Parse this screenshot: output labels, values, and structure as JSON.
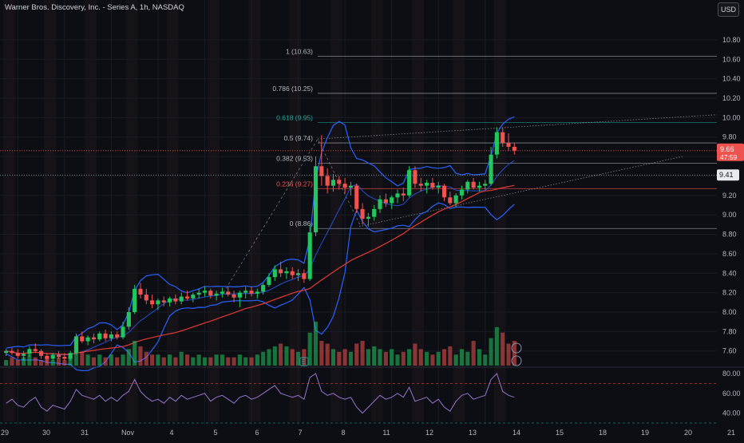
{
  "header": {
    "title": "Warner Bros. Discovery, Inc. - Series A, 1h, NASDAQ",
    "currency": "USD"
  },
  "colors": {
    "background": "#0c0e13",
    "up": "#26a69a",
    "up_bright": "#22c55e",
    "down": "#ef5350",
    "bollinger": "#2962ff",
    "ma_red": "#e53935",
    "rsi": "#9575cd",
    "fib": "#b2b5be",
    "fib_618": "#26a69a",
    "fib_236": "#ef5350"
  },
  "chart_data": [
    {
      "type": "candlestick",
      "title": "Warner Bros. Discovery, Inc. - Series A, 1h, NASDAQ",
      "ylim": [
        7.45,
        10.98
      ],
      "y_ticks": [
        "10.80",
        "10.60",
        "10.40",
        "10.20",
        "10.00",
        "9.80",
        "9.60",
        "9.40",
        "9.20",
        "9.00",
        "8.80",
        "8.60",
        "8.40",
        "8.20",
        "8.00",
        "7.80",
        "7.60"
      ],
      "x_labels": [
        "29",
        "30",
        "31",
        "Nov",
        "4",
        "5",
        "6",
        "7",
        "8",
        "11",
        "12",
        "13",
        "14",
        "15",
        "18",
        "19",
        "20",
        "21"
      ],
      "last_price": "9.66",
      "countdown": "47:59",
      "marker_price": "9.41",
      "fibonacci": [
        {
          "label": "1 (10.63)",
          "value": 10.63
        },
        {
          "label": "0.786 (10.25)",
          "value": 10.25
        },
        {
          "label": "0.618 (9.95)",
          "value": 9.95
        },
        {
          "label": "0.5 (9.74)",
          "value": 9.74
        },
        {
          "label": "0.382 (9.53)",
          "value": 9.53
        },
        {
          "label": "0.236 (9.27)",
          "value": 9.27
        },
        {
          "label": "0 (8.86)",
          "value": 8.86
        }
      ],
      "ohlc": [
        [
          7.58,
          7.62,
          7.55,
          7.6
        ],
        [
          7.6,
          7.63,
          7.56,
          7.58
        ],
        [
          7.58,
          7.62,
          7.52,
          7.55
        ],
        [
          7.55,
          7.6,
          7.5,
          7.57
        ],
        [
          7.57,
          7.65,
          7.54,
          7.62
        ],
        [
          7.62,
          7.68,
          7.58,
          7.6
        ],
        [
          7.6,
          7.62,
          7.52,
          7.55
        ],
        [
          7.55,
          7.58,
          7.48,
          7.52
        ],
        [
          7.52,
          7.58,
          7.5,
          7.56
        ],
        [
          7.56,
          7.6,
          7.52,
          7.54
        ],
        [
          7.54,
          7.58,
          7.5,
          7.52
        ],
        [
          7.52,
          7.6,
          7.5,
          7.58
        ],
        [
          7.58,
          7.78,
          7.56,
          7.75
        ],
        [
          7.75,
          7.8,
          7.68,
          7.7
        ],
        [
          7.7,
          7.76,
          7.66,
          7.74
        ],
        [
          7.74,
          7.78,
          7.68,
          7.72
        ],
        [
          7.72,
          7.8,
          7.7,
          7.78
        ],
        [
          7.78,
          7.82,
          7.7,
          7.73
        ],
        [
          7.73,
          7.8,
          7.7,
          7.77
        ],
        [
          7.77,
          7.8,
          7.72,
          7.74
        ],
        [
          7.74,
          7.9,
          7.72,
          7.85
        ],
        [
          7.85,
          8.05,
          7.82,
          8.0
        ],
        [
          8.0,
          8.28,
          7.98,
          8.24
        ],
        [
          8.24,
          8.3,
          8.14,
          8.18
        ],
        [
          8.18,
          8.24,
          8.08,
          8.12
        ],
        [
          8.12,
          8.18,
          8.04,
          8.08
        ],
        [
          8.08,
          8.14,
          8.02,
          8.12
        ],
        [
          8.12,
          8.16,
          8.06,
          8.1
        ],
        [
          8.1,
          8.16,
          8.06,
          8.14
        ],
        [
          8.14,
          8.18,
          8.08,
          8.11
        ],
        [
          8.11,
          8.2,
          8.08,
          8.16
        ],
        [
          8.16,
          8.22,
          8.12,
          8.14
        ],
        [
          8.14,
          8.2,
          8.1,
          8.18
        ],
        [
          8.18,
          8.24,
          8.14,
          8.2
        ],
        [
          8.2,
          8.26,
          8.16,
          8.22
        ],
        [
          8.22,
          8.24,
          8.14,
          8.17
        ],
        [
          8.17,
          8.22,
          8.12,
          8.19
        ],
        [
          8.19,
          8.25,
          8.15,
          8.21
        ],
        [
          8.21,
          8.26,
          8.16,
          8.18
        ],
        [
          8.18,
          8.22,
          8.1,
          8.15
        ],
        [
          8.15,
          8.22,
          8.05,
          8.2
        ],
        [
          8.2,
          8.26,
          8.14,
          8.22
        ],
        [
          8.22,
          8.26,
          8.16,
          8.19
        ],
        [
          8.19,
          8.24,
          8.14,
          8.21
        ],
        [
          8.21,
          8.3,
          8.18,
          8.28
        ],
        [
          8.28,
          8.4,
          8.26,
          8.36
        ],
        [
          8.36,
          8.48,
          8.32,
          8.44
        ],
        [
          8.44,
          8.52,
          8.36,
          8.4
        ],
        [
          8.4,
          8.46,
          8.34,
          8.42
        ],
        [
          8.42,
          8.46,
          8.34,
          8.38
        ],
        [
          8.38,
          8.44,
          8.32,
          8.4
        ],
        [
          8.4,
          8.44,
          8.3,
          8.34
        ],
        [
          8.34,
          8.9,
          8.32,
          8.82
        ],
        [
          8.82,
          9.6,
          8.78,
          9.5
        ],
        [
          9.5,
          9.82,
          9.3,
          9.4
        ],
        [
          9.4,
          9.48,
          9.22,
          9.3
        ],
        [
          9.3,
          9.42,
          9.24,
          9.36
        ],
        [
          9.36,
          9.4,
          9.26,
          9.32
        ],
        [
          9.32,
          9.38,
          9.22,
          9.28
        ],
        [
          9.28,
          9.34,
          9.2,
          9.3
        ],
        [
          9.3,
          9.32,
          9.02,
          9.06
        ],
        [
          9.06,
          9.12,
          8.9,
          8.96
        ],
        [
          8.96,
          9.02,
          8.88,
          8.98
        ],
        [
          8.98,
          9.1,
          8.94,
          9.06
        ],
        [
          9.06,
          9.2,
          9.02,
          9.16
        ],
        [
          9.16,
          9.22,
          9.08,
          9.12
        ],
        [
          9.12,
          9.2,
          9.06,
          9.18
        ],
        [
          9.18,
          9.26,
          9.12,
          9.22
        ],
        [
          9.22,
          9.28,
          9.14,
          9.2
        ],
        [
          9.2,
          9.5,
          9.18,
          9.46
        ],
        [
          9.46,
          9.5,
          9.28,
          9.32
        ],
        [
          9.32,
          9.38,
          9.24,
          9.3
        ],
        [
          9.3,
          9.36,
          9.22,
          9.33
        ],
        [
          9.33,
          9.38,
          9.26,
          9.28
        ],
        [
          9.28,
          9.34,
          9.22,
          9.3
        ],
        [
          9.3,
          9.32,
          9.14,
          9.18
        ],
        [
          9.18,
          9.24,
          9.1,
          9.12
        ],
        [
          9.12,
          9.22,
          9.08,
          9.2
        ],
        [
          9.2,
          9.3,
          9.16,
          9.26
        ],
        [
          9.26,
          9.36,
          9.22,
          9.34
        ],
        [
          9.34,
          9.38,
          9.26,
          9.28
        ],
        [
          9.28,
          9.34,
          9.24,
          9.3
        ],
        [
          9.3,
          9.36,
          9.26,
          9.32
        ],
        [
          9.32,
          9.7,
          9.3,
          9.62
        ],
        [
          9.62,
          9.9,
          9.58,
          9.85
        ],
        [
          9.85,
          9.9,
          9.7,
          9.74
        ],
        [
          9.74,
          9.84,
          9.66,
          9.7
        ],
        [
          9.7,
          9.74,
          9.62,
          9.66
        ]
      ],
      "volume": [
        2,
        3,
        2,
        3,
        4,
        3,
        2,
        3,
        2,
        3,
        2,
        3,
        8,
        5,
        4,
        3,
        4,
        3,
        4,
        3,
        4,
        6,
        9,
        7,
        5,
        4,
        4,
        3,
        4,
        3,
        5,
        4,
        3,
        4,
        3,
        3,
        4,
        4,
        3,
        3,
        4,
        3,
        3,
        4,
        5,
        6,
        7,
        8,
        7,
        6,
        5,
        6,
        12,
        16,
        9,
        8,
        6,
        5,
        6,
        5,
        8,
        9,
        6,
        7,
        6,
        5,
        6,
        4,
        5,
        6,
        8,
        6,
        5,
        4,
        5,
        6,
        7,
        4,
        6,
        5,
        9,
        6,
        4,
        10,
        14,
        12,
        8,
        9
      ]
    },
    {
      "type": "line",
      "title": "RSI",
      "ylim": [
        30,
        84
      ],
      "y_ticks": [
        "80.00",
        "60.00",
        "40.00"
      ],
      "guides": [
        70,
        30
      ],
      "values": [
        50,
        54,
        48,
        46,
        52,
        56,
        46,
        42,
        48,
        46,
        44,
        52,
        64,
        58,
        56,
        54,
        58,
        52,
        56,
        52,
        58,
        62,
        74,
        62,
        56,
        52,
        54,
        50,
        56,
        52,
        58,
        54,
        56,
        58,
        60,
        52,
        56,
        58,
        54,
        50,
        56,
        58,
        54,
        56,
        60,
        64,
        68,
        60,
        58,
        56,
        58,
        54,
        76,
        80,
        62,
        58,
        60,
        56,
        54,
        56,
        46,
        40,
        46,
        52,
        58,
        54,
        56,
        60,
        56,
        66,
        52,
        54,
        56,
        50,
        54,
        46,
        42,
        52,
        58,
        60,
        54,
        56,
        58,
        74,
        80,
        62,
        58,
        56
      ]
    }
  ]
}
